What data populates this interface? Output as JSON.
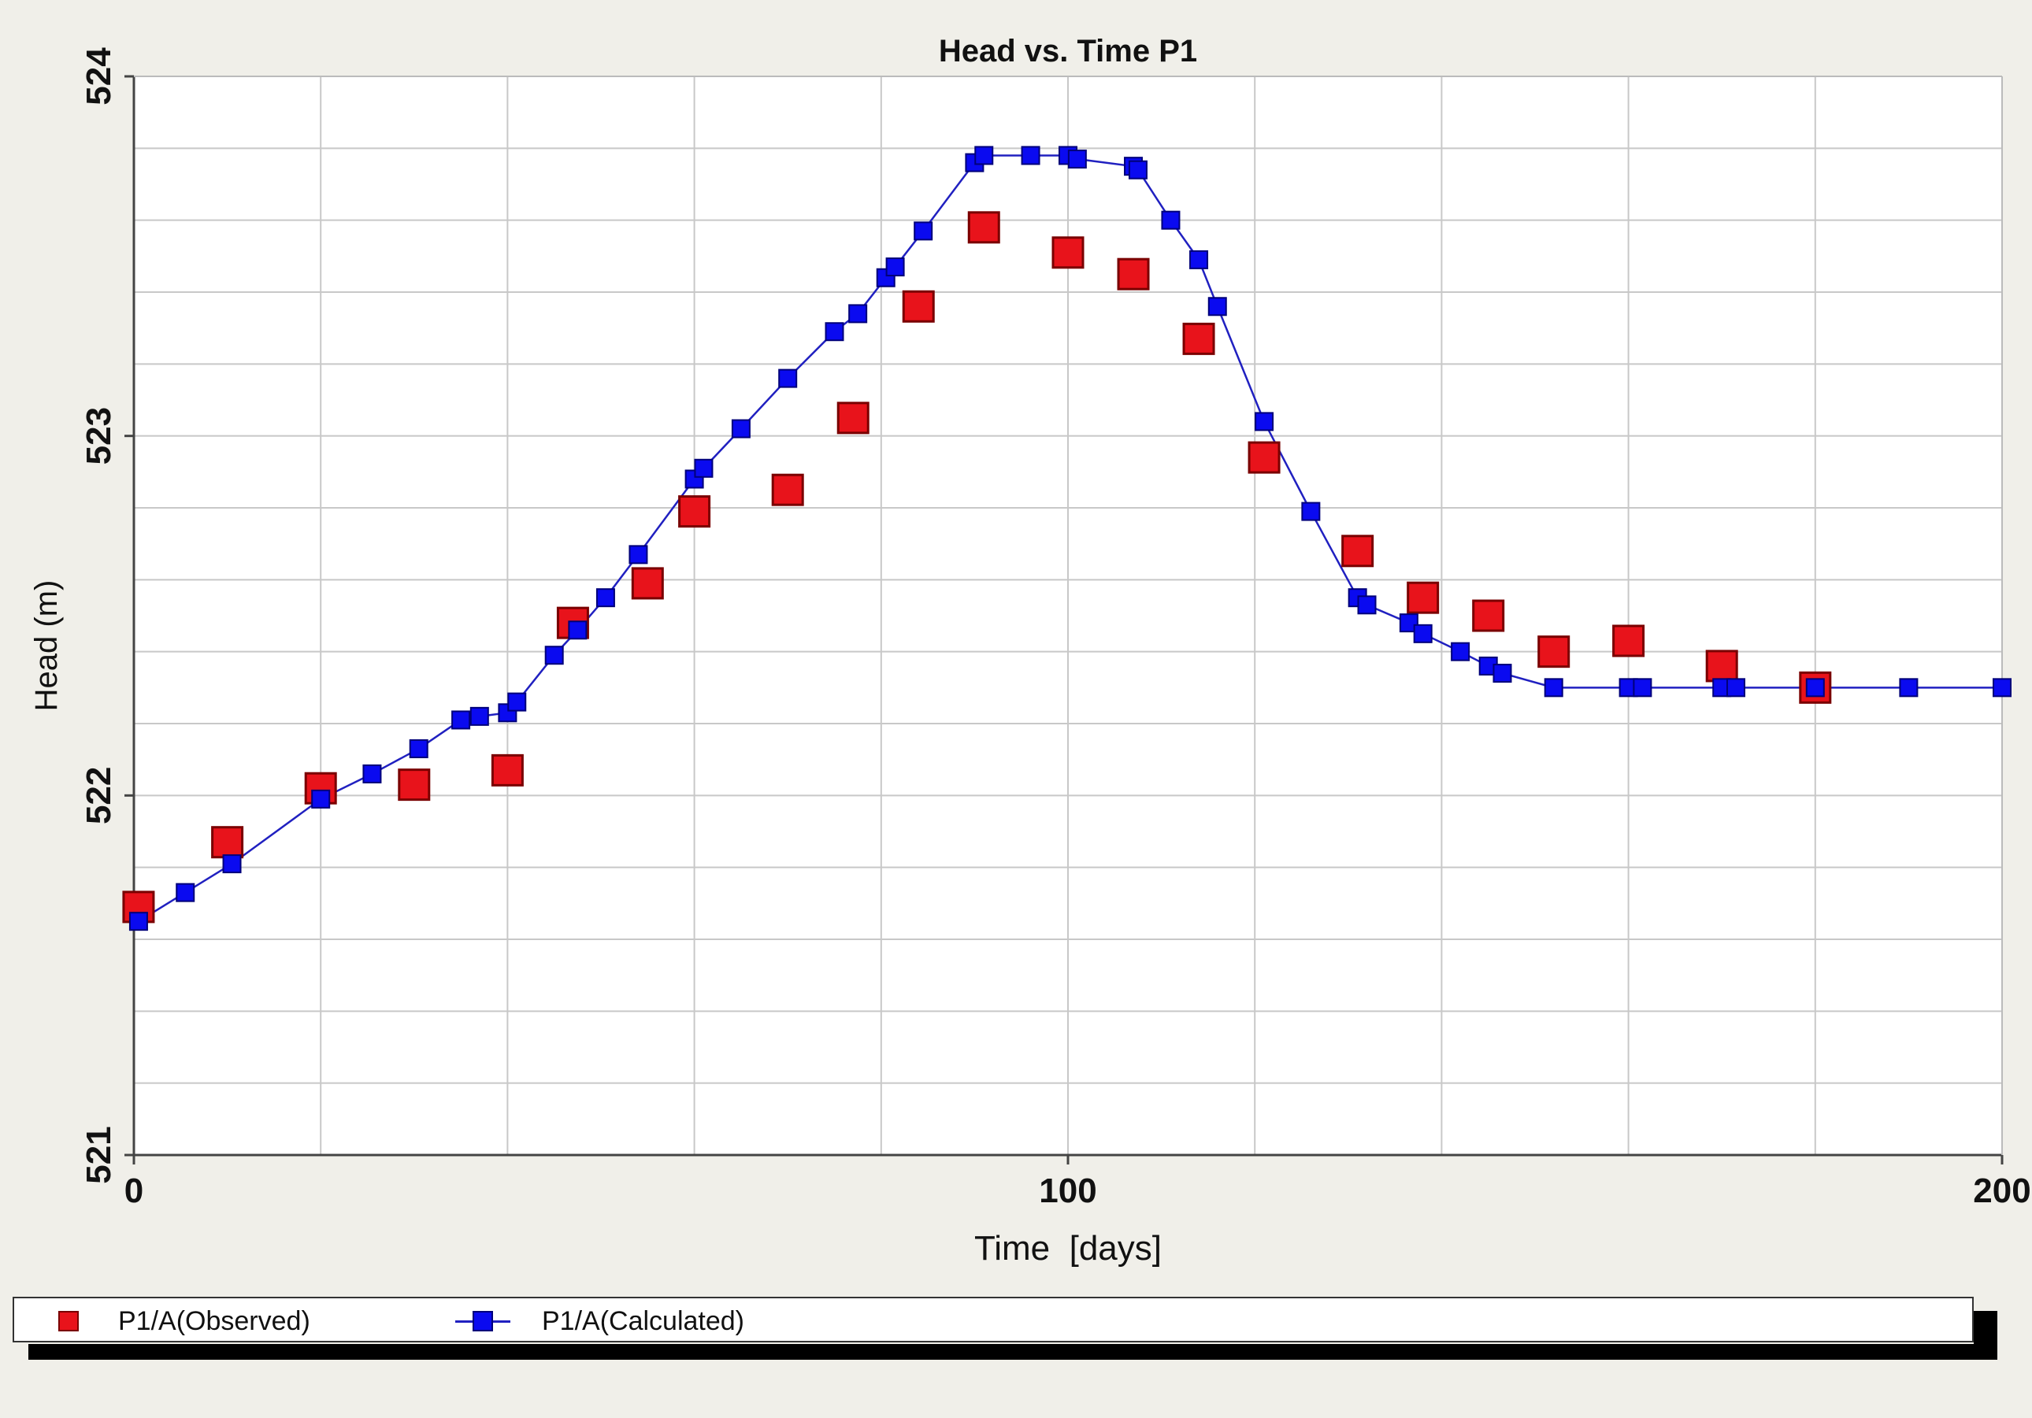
{
  "chart_data": {
    "type": "line",
    "title": "Head vs. Time P1",
    "xlabel": "Time  [days]",
    "ylabel": "Head (m)",
    "xlim": [
      0,
      200
    ],
    "ylim": [
      521,
      524
    ],
    "x_tick_labels": [
      "0",
      "100",
      "200"
    ],
    "y_tick_labels": [
      "521",
      "522",
      "523",
      "524"
    ],
    "x_grid_step": 20,
    "y_grid_step": 0.2,
    "grid": true,
    "legend_position": "bottom",
    "series": [
      {
        "name": "P1/A(Observed)",
        "style": "markers",
        "color": "#e8131b",
        "points": [
          [
            0.5,
            521.69
          ],
          [
            10,
            521.87
          ],
          [
            20,
            522.02
          ],
          [
            30,
            522.03
          ],
          [
            40,
            522.07
          ],
          [
            47,
            522.48
          ],
          [
            55,
            522.59
          ],
          [
            60,
            522.79
          ],
          [
            70,
            522.85
          ],
          [
            77,
            523.05
          ],
          [
            84,
            523.36
          ],
          [
            91,
            523.58
          ],
          [
            100,
            523.51
          ],
          [
            107,
            523.45
          ],
          [
            114,
            523.27
          ],
          [
            121,
            522.94
          ],
          [
            131,
            522.68
          ],
          [
            138,
            522.55
          ],
          [
            145,
            522.5
          ],
          [
            152,
            522.4
          ],
          [
            160,
            522.43
          ],
          [
            170,
            522.36
          ],
          [
            180,
            522.3
          ]
        ]
      },
      {
        "name": "P1/A(Calculated)",
        "style": "line-markers",
        "color": "#0a0af0",
        "line_color": "#2020c0",
        "points": [
          [
            0.5,
            521.65
          ],
          [
            5.5,
            521.73
          ],
          [
            10.5,
            521.81
          ],
          [
            20,
            521.99
          ],
          [
            25.5,
            522.06
          ],
          [
            30.5,
            522.13
          ],
          [
            35,
            522.21
          ],
          [
            37,
            522.22
          ],
          [
            40,
            522.23
          ],
          [
            41,
            522.26
          ],
          [
            45,
            522.39
          ],
          [
            47.5,
            522.46
          ],
          [
            50.5,
            522.55
          ],
          [
            54,
            522.67
          ],
          [
            60,
            522.88
          ],
          [
            61,
            522.91
          ],
          [
            65,
            523.02
          ],
          [
            70,
            523.16
          ],
          [
            75,
            523.29
          ],
          [
            77.5,
            523.34
          ],
          [
            80.5,
            523.44
          ],
          [
            81.5,
            523.47
          ],
          [
            84.5,
            523.57
          ],
          [
            90,
            523.76
          ],
          [
            91,
            523.78
          ],
          [
            96,
            523.78
          ],
          [
            100,
            523.78
          ],
          [
            101,
            523.77
          ],
          [
            107,
            523.75
          ],
          [
            107.5,
            523.74
          ],
          [
            111,
            523.6
          ],
          [
            114,
            523.49
          ],
          [
            116,
            523.36
          ],
          [
            121,
            523.04
          ],
          [
            126,
            522.79
          ],
          [
            131,
            522.55
          ],
          [
            132,
            522.53
          ],
          [
            136.5,
            522.48
          ],
          [
            138,
            522.45
          ],
          [
            142,
            522.4
          ],
          [
            145,
            522.36
          ],
          [
            146.5,
            522.34
          ],
          [
            152,
            522.3
          ],
          [
            160,
            522.3
          ],
          [
            161.5,
            522.3
          ],
          [
            170,
            522.3
          ],
          [
            171.5,
            522.3
          ],
          [
            180,
            522.3
          ],
          [
            190,
            522.3
          ],
          [
            200,
            522.3
          ]
        ]
      }
    ]
  }
}
